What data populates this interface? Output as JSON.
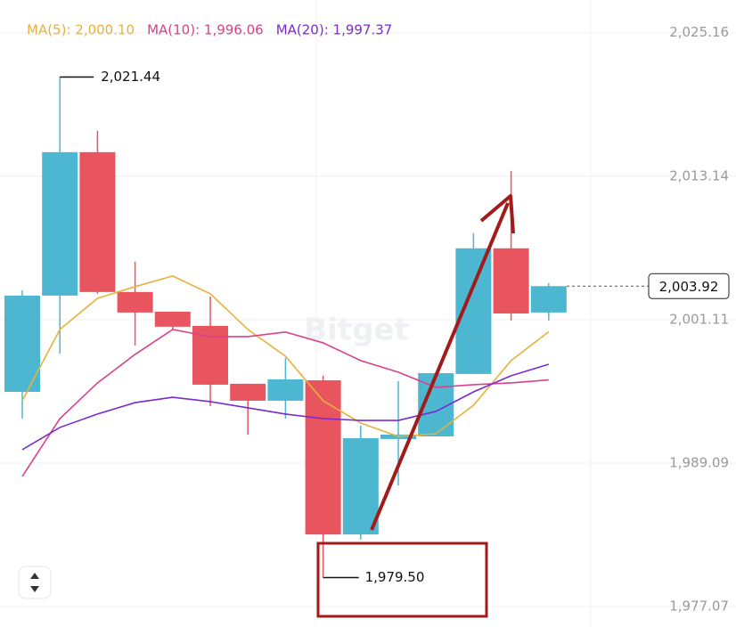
{
  "chart_data": {
    "type": "candlestick",
    "ylim": [
      1976.4,
      2027.9
    ],
    "yticks": [
      {
        "value": 2025.16,
        "label": "2,025.16"
      },
      {
        "value": 2013.14,
        "label": "2,013.14"
      },
      {
        "value": 2001.11,
        "label": "2,001.11"
      },
      {
        "value": 1989.09,
        "label": "1,989.09"
      },
      {
        "value": 1977.07,
        "label": "1,977.07"
      }
    ],
    "grid": true,
    "up_color": "#4db6d1",
    "down_color": "#e8555f",
    "open": [
      1995.06,
      2003.13,
      2015.15,
      2003.43,
      2001.78,
      2000.59,
      1995.74,
      1994.32,
      1996.03,
      1983.11,
      1991.11,
      1991.33,
      1996.56,
      2007.09,
      2001.71
    ],
    "high": [
      2003.58,
      2021.44,
      2016.94,
      2005.97,
      2001.78,
      2003.05,
      1995.74,
      1997.9,
      1996.41,
      1992.23,
      1995.96,
      1996.63,
      2008.36,
      2013.58,
      2004.17
    ],
    "low": [
      1992.82,
      1998.27,
      2003.28,
      1998.95,
      2000.3,
      1993.87,
      1991.48,
      1992.82,
      1979.5,
      1982.67,
      1987.22,
      1991.33,
      1996.56,
      2001.04,
      2001.04
    ],
    "close": [
      2003.13,
      2015.15,
      2003.43,
      2001.71,
      2000.52,
      1995.66,
      1994.32,
      1996.11,
      1983.11,
      1991.18,
      1991.48,
      1996.63,
      2007.09,
      2001.63,
      2003.92
    ],
    "series": [
      {
        "name": "MA(5): 2,000.10",
        "color": "#e8b13a",
        "values": [
          1994.32,
          2000.29,
          2002.9,
          2003.88,
          2004.77,
          2003.28,
          2000.29,
          1998.05,
          1994.32,
          1992.45,
          1991.33,
          1991.55,
          1993.94,
          1997.68,
          2000.1
        ]
      },
      {
        "name": "MA(10): 1,996.06",
        "color": "#d9418a",
        "values": [
          1987.97,
          1992.82,
          1995.81,
          1998.2,
          2000.29,
          1999.69,
          1999.69,
          2000.07,
          1999.17,
          1997.68,
          1996.71,
          1995.44,
          1995.66,
          1995.81,
          1996.06
        ]
      },
      {
        "name": "MA(20): 1,997.37",
        "color": "#7a2ad1",
        "values": [
          1990.21,
          1992.08,
          1993.2,
          1994.16,
          1994.61,
          1994.24,
          1993.72,
          1993.2,
          1992.82,
          1992.67,
          1992.67,
          1993.42,
          1995.06,
          1996.41,
          1997.37
        ]
      }
    ],
    "annotations": [
      {
        "value": 2021.44,
        "label": "2,021.44"
      },
      {
        "value": 1979.5,
        "label": "1,979.50"
      },
      {
        "value": 2003.92,
        "label": "2,003.92"
      }
    ],
    "watermark": "Bitget"
  }
}
